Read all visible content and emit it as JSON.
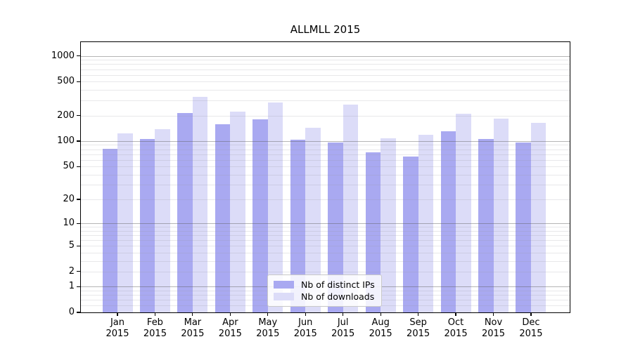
{
  "title": "ALLMLL 2015",
  "chart_data": {
    "type": "bar",
    "title": "ALLMLL 2015",
    "categories": [
      "Jan 2015",
      "Feb 2015",
      "Mar 2015",
      "Apr 2015",
      "May 2015",
      "Jun 2015",
      "Jul 2015",
      "Aug 2015",
      "Sep 2015",
      "Oct 2015",
      "Nov 2015",
      "Dec 2015"
    ],
    "series": [
      {
        "name": "Nb of distinct IPs",
        "color": "#a9a9f1",
        "values": [
          81,
          106,
          214,
          158,
          180,
          104,
          96,
          74,
          66,
          131,
          106,
          96
        ]
      },
      {
        "name": "Nb of downloads",
        "color": "#dcdcf8",
        "values": [
          123,
          138,
          331,
          222,
          285,
          144,
          269,
          108,
          119,
          210,
          184,
          164
        ]
      }
    ],
    "xlabel": "",
    "ylabel": "",
    "yscale": "log1p",
    "ylim": [
      0,
      1452
    ],
    "y_ticks": [
      0,
      1,
      2,
      5,
      10,
      20,
      50,
      100,
      200,
      500,
      1000
    ],
    "y_major_gridlines": [
      1,
      10,
      100,
      1000
    ],
    "y_minor_gridlines": [
      0.2,
      0.4,
      0.6,
      0.8,
      2,
      3,
      4,
      5,
      6,
      7,
      8,
      9,
      20,
      30,
      40,
      50,
      60,
      70,
      80,
      90,
      200,
      300,
      400,
      500,
      600,
      700,
      800,
      900
    ],
    "grid": true,
    "legend_position": "lower center"
  },
  "style": {
    "grid_major_color": "rgba(90,90,90,0.45)",
    "grid_minor_color": "rgba(150,150,160,0.22)",
    "spine_color": "#000000",
    "background": "#ffffff"
  }
}
